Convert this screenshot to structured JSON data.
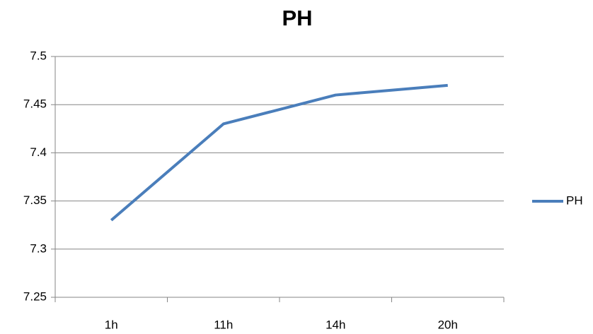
{
  "chart_data": {
    "type": "line",
    "title": "PH",
    "categories": [
      "1h",
      "11h",
      "14h",
      "20h"
    ],
    "series": [
      {
        "name": "PH",
        "color": "#4a7ebb",
        "values": [
          7.33,
          7.43,
          7.46,
          7.47
        ]
      }
    ],
    "ylim": [
      7.25,
      7.5
    ],
    "yticks": [
      7.25,
      7.3,
      7.35,
      7.4,
      7.45,
      7.5
    ],
    "grid": true,
    "legend": "right"
  }
}
